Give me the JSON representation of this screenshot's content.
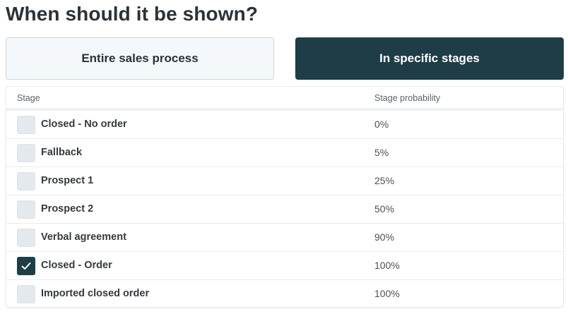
{
  "heading": "When should it be shown?",
  "modes": {
    "entire_label": "Entire sales process",
    "specific_label": "In specific stages",
    "selected": "specific"
  },
  "colors": {
    "accent": "#1e3d47",
    "inactive_bg": "#f4f8fb",
    "checkbox_bg": "#e4e9ee"
  },
  "table": {
    "headers": {
      "stage": "Stage",
      "probability": "Stage probability"
    },
    "rows": [
      {
        "name": "Closed - No order",
        "probability": "0%",
        "checked": false
      },
      {
        "name": "Fallback",
        "probability": "5%",
        "checked": false
      },
      {
        "name": "Prospect 1",
        "probability": "25%",
        "checked": false
      },
      {
        "name": "Prospect 2",
        "probability": "50%",
        "checked": false
      },
      {
        "name": "Verbal agreement",
        "probability": "90%",
        "checked": false
      },
      {
        "name": "Closed - Order",
        "probability": "100%",
        "checked": true
      },
      {
        "name": "Imported closed order",
        "probability": "100%",
        "checked": false
      }
    ]
  }
}
